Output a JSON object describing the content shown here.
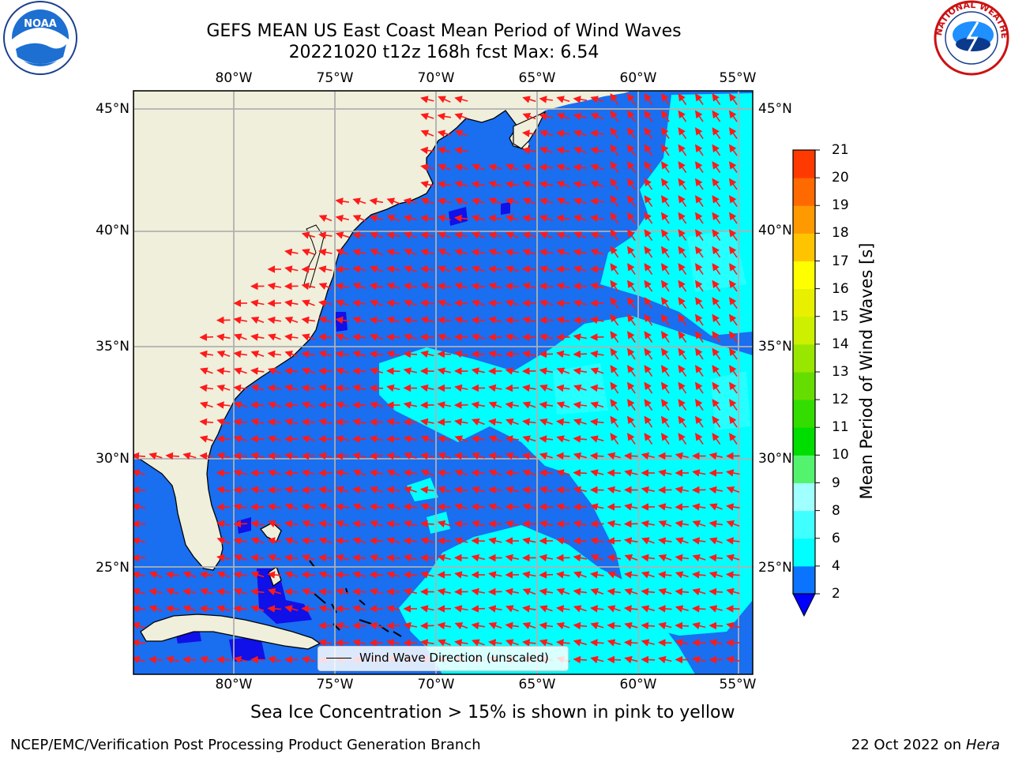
{
  "header": {
    "title_line1": "GEFS MEAN US East Coast Mean Period of Wind Waves",
    "title_line2": "20221020 t12z 168h fcst   Max: 6.54",
    "left_logo_text": "NOAA",
    "right_logo_text": "NATIONAL WEATHER SERVICE"
  },
  "map": {
    "lon_labels": [
      "80°W",
      "75°W",
      "70°W",
      "65°W",
      "60°W",
      "55°W"
    ],
    "lat_labels": [
      "45°N",
      "40°N",
      "35°N",
      "30°N",
      "25°N"
    ],
    "lon_range": [
      -85,
      -54.5
    ],
    "lat_range": [
      20.5,
      46.3
    ],
    "legend_label": "Wind Wave Direction (unscaled)",
    "colors": {
      "land": "#efefdb",
      "deep_blue": "#1a6ef0",
      "lowest_blue": "#1010e8",
      "cyan": "#00ffff",
      "vector": "#ff1a1a",
      "grid": "#b0b0b0"
    }
  },
  "colorbar": {
    "label": "Mean Period of Wind Waves [s]",
    "ticks": [
      "2",
      "4",
      "6",
      "8",
      "9",
      "10",
      "11",
      "12",
      "13",
      "14",
      "15",
      "16",
      "17",
      "18",
      "19",
      "20",
      "21"
    ],
    "colors": [
      "#0a74ff",
      "#00ffff",
      "#40ffff",
      "#a0ffff",
      "#54f36e",
      "#00dd00",
      "#33dd00",
      "#66dd00",
      "#99e600",
      "#ccf000",
      "#e8f000",
      "#ffff00",
      "#ffc400",
      "#ff9900",
      "#ff6a00",
      "#ff3a00",
      "#ff0000"
    ],
    "under_color": "#0000ff"
  },
  "note": "Sea Ice Concentration > 15% is shown in pink to yellow",
  "footer": {
    "left": "NCEP/EMC/Verification Post Processing Product Generation Branch",
    "right_date": "22 Oct 2022 on ",
    "right_machine": "Hera"
  }
}
